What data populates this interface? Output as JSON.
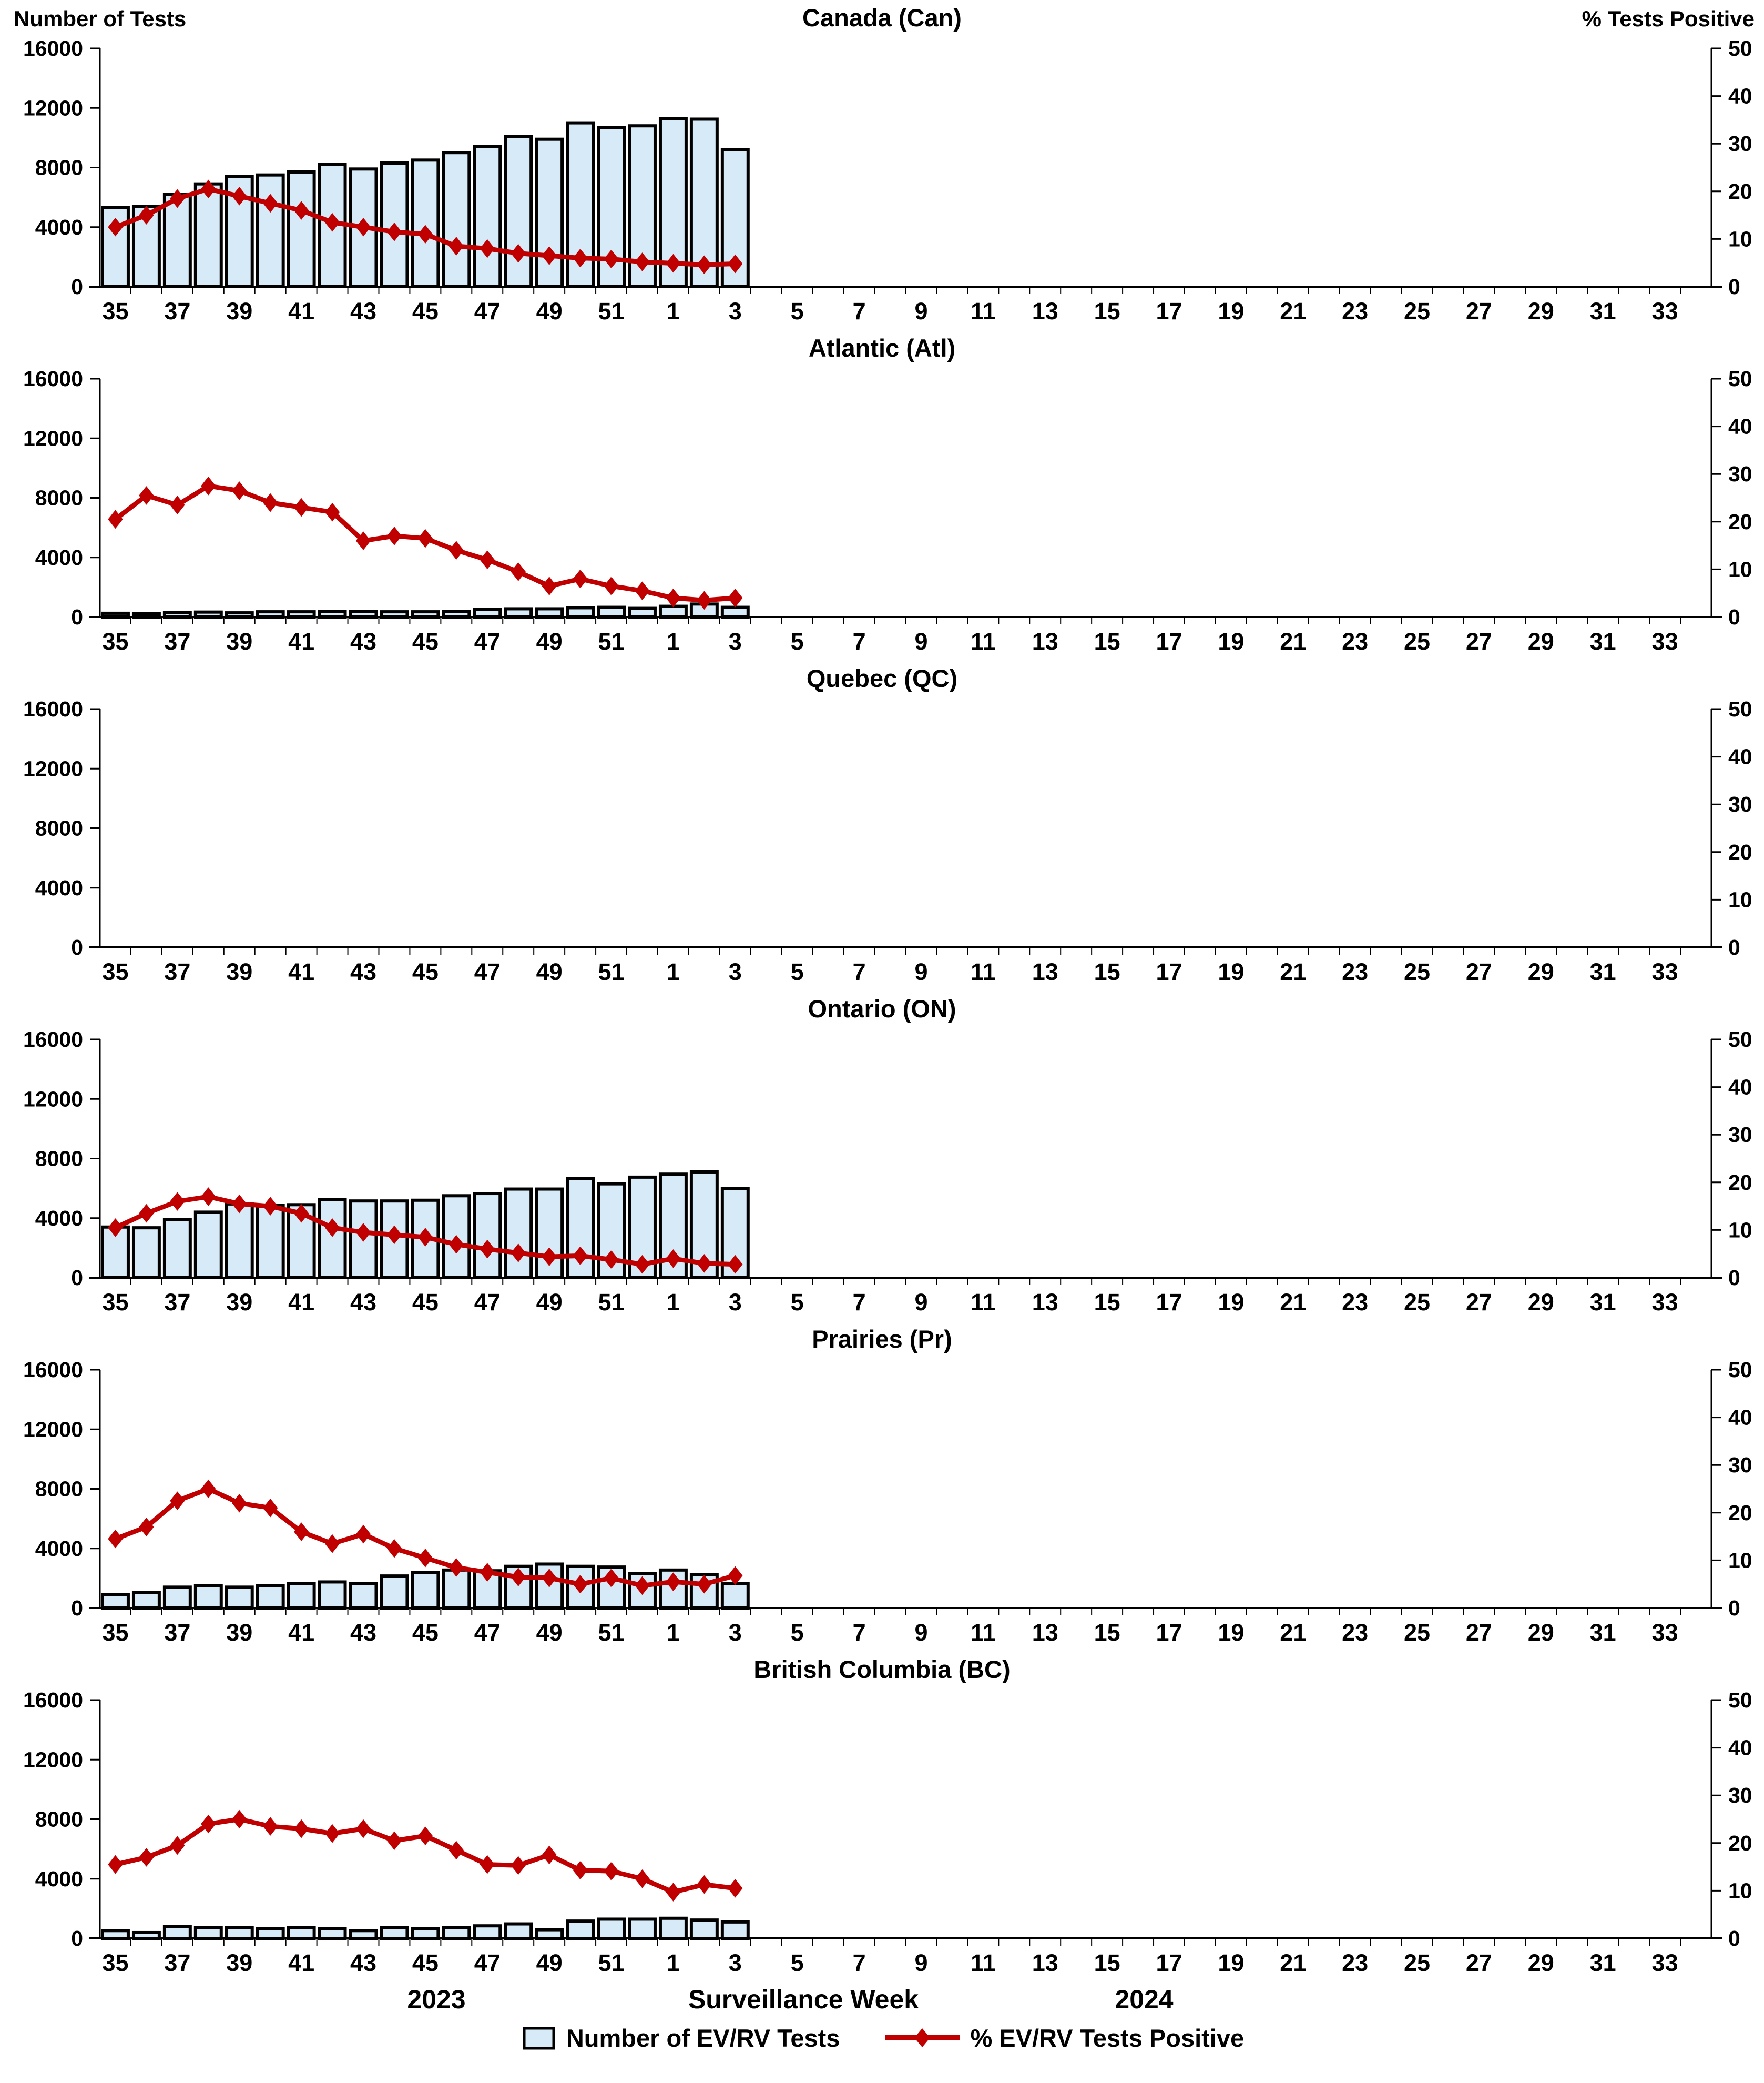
{
  "page": {
    "left_axis_title": "Number of Tests",
    "right_axis_title": "% Tests Positive",
    "x_axis_title": "Surveillance Week",
    "year_left": "2023",
    "year_right": "2024",
    "legend": {
      "bars_label": "Number of EV/RV Tests",
      "line_label": "% EV/RV Tests Positive"
    },
    "colors": {
      "bar_fill": "#D6EAF8",
      "bar_border": "#000000",
      "line": "#C00000",
      "background": "#FFFFFF",
      "text": "#000000"
    }
  },
  "axes": {
    "x": {
      "label": "Surveillance Week",
      "tick_labels": [
        "35",
        "37",
        "39",
        "41",
        "43",
        "45",
        "47",
        "49",
        "51",
        "1",
        "3",
        "5",
        "7",
        "9",
        "11",
        "13",
        "15",
        "17",
        "19",
        "21",
        "23",
        "25",
        "27",
        "29",
        "31",
        "33"
      ],
      "first_week": 35,
      "weeks_in_2023": 18,
      "weeks_in_2024": 34,
      "total_slots": 52
    },
    "y_left": {
      "label": "Number of Tests",
      "min": 0,
      "max": 16000,
      "ticks": [
        0,
        4000,
        8000,
        12000,
        16000
      ]
    },
    "y_right": {
      "label": "% Tests Positive",
      "min": 0,
      "max": 50,
      "ticks": [
        0,
        10,
        20,
        30,
        40,
        50
      ]
    }
  },
  "chart_data": [
    {
      "type": "bar-line-combo",
      "title": "Canada (Can)",
      "weeks": [
        35,
        36,
        37,
        38,
        39,
        40,
        41,
        42,
        43,
        44,
        45,
        46,
        47,
        48,
        49,
        50,
        51,
        52,
        1,
        2,
        3
      ],
      "series": [
        {
          "name": "Number of EV/RV Tests",
          "type": "bar",
          "axis": "left",
          "values": [
            5300,
            5400,
            6200,
            6900,
            7400,
            7500,
            7700,
            8200,
            7900,
            8300,
            8500,
            9000,
            9400,
            10100,
            9900,
            11000,
            10700,
            10800,
            11300,
            11250,
            9200
          ]
        },
        {
          "name": "% EV/RV Tests Positive",
          "type": "line",
          "axis": "right",
          "values": [
            12.5,
            15,
            18.5,
            20.5,
            19,
            17.5,
            16,
            13.5,
            12.5,
            11.5,
            11,
            8.5,
            8,
            7,
            6.5,
            6,
            5.8,
            5.2,
            4.9,
            4.6,
            4.8
          ]
        }
      ]
    },
    {
      "type": "bar-line-combo",
      "title": "Atlantic (Atl)",
      "weeks": [
        35,
        36,
        37,
        38,
        39,
        40,
        41,
        42,
        43,
        44,
        45,
        46,
        47,
        48,
        49,
        50,
        51,
        52,
        1,
        2,
        3
      ],
      "series": [
        {
          "name": "Number of EV/RV Tests",
          "type": "bar",
          "axis": "left",
          "values": [
            250,
            220,
            300,
            330,
            280,
            350,
            350,
            380,
            380,
            350,
            350,
            380,
            500,
            550,
            550,
            620,
            650,
            580,
            720,
            870,
            650
          ]
        },
        {
          "name": "% EV/RV Tests Positive",
          "type": "line",
          "axis": "right",
          "values": [
            20.5,
            25.5,
            23.5,
            27.5,
            26.5,
            24,
            23,
            22,
            16,
            17,
            16.5,
            14,
            12,
            9.5,
            6.5,
            8,
            6.5,
            5.5,
            4,
            3.5,
            4
          ]
        }
      ]
    },
    {
      "type": "bar-line-combo",
      "title": "Quebec (QC)",
      "weeks": [],
      "series": [
        {
          "name": "Number of EV/RV Tests",
          "type": "bar",
          "axis": "left",
          "values": []
        },
        {
          "name": "% EV/RV Tests Positive",
          "type": "line",
          "axis": "right",
          "values": []
        }
      ]
    },
    {
      "type": "bar-line-combo",
      "title": "Ontario (ON)",
      "weeks": [
        35,
        36,
        37,
        38,
        39,
        40,
        41,
        42,
        43,
        44,
        45,
        46,
        47,
        48,
        49,
        50,
        51,
        52,
        1,
        2,
        3
      ],
      "series": [
        {
          "name": "Number of EV/RV Tests",
          "type": "bar",
          "axis": "left",
          "values": [
            3400,
            3350,
            3900,
            4400,
            4950,
            4850,
            4900,
            5250,
            5150,
            5150,
            5200,
            5500,
            5650,
            5950,
            5950,
            6650,
            6300,
            6750,
            6950,
            7100,
            6000
          ]
        },
        {
          "name": "% EV/RV Tests Positive",
          "type": "line",
          "axis": "right",
          "values": [
            10.5,
            13.5,
            16,
            17,
            15.5,
            15,
            13.5,
            10.5,
            9.5,
            9,
            8.5,
            7,
            6,
            5.2,
            4.4,
            4.6,
            3.8,
            2.8,
            4,
            3,
            2.8
          ]
        }
      ]
    },
    {
      "type": "bar-line-combo",
      "title": "Prairies (Pr)",
      "weeks": [
        35,
        36,
        37,
        38,
        39,
        40,
        41,
        42,
        43,
        44,
        45,
        46,
        47,
        48,
        49,
        50,
        51,
        52,
        1,
        2,
        3
      ],
      "series": [
        {
          "name": "Number of EV/RV Tests",
          "type": "bar",
          "axis": "left",
          "values": [
            900,
            1050,
            1400,
            1500,
            1400,
            1500,
            1650,
            1750,
            1650,
            2150,
            2400,
            2550,
            2500,
            2800,
            2950,
            2800,
            2750,
            2300,
            2550,
            2250,
            1650
          ]
        },
        {
          "name": "% EV/RV Tests Positive",
          "type": "line",
          "axis": "right",
          "values": [
            14.5,
            17,
            22.5,
            25,
            22,
            21,
            16,
            13.5,
            15.5,
            12.5,
            10.5,
            8.5,
            7.5,
            6.5,
            6.3,
            5,
            6.3,
            4.7,
            5.5,
            5,
            6.8
          ]
        }
      ]
    },
    {
      "type": "bar-line-combo",
      "title": "British Columbia (BC)",
      "weeks": [
        35,
        36,
        37,
        38,
        39,
        40,
        41,
        42,
        43,
        44,
        45,
        46,
        47,
        48,
        49,
        50,
        51,
        52,
        1,
        2,
        3
      ],
      "series": [
        {
          "name": "Number of EV/RV Tests",
          "type": "bar",
          "axis": "left",
          "values": [
            520,
            390,
            780,
            710,
            710,
            650,
            710,
            650,
            520,
            710,
            650,
            710,
            840,
            970,
            580,
            1160,
            1290,
            1290,
            1350,
            1230,
            1100
          ]
        },
        {
          "name": "% EV/RV Tests Positive",
          "type": "line",
          "axis": "right",
          "values": [
            15.5,
            17,
            19.5,
            24,
            25,
            23.5,
            23,
            22,
            23,
            20.5,
            21.5,
            18.5,
            15.5,
            15.3,
            17.5,
            14.3,
            14.1,
            12.5,
            9.7,
            11.3,
            10.5
          ]
        }
      ]
    }
  ]
}
